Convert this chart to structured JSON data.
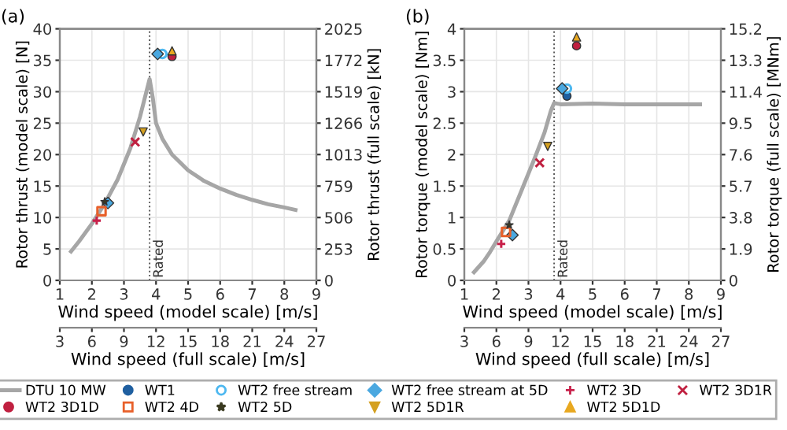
{
  "chart_data": [
    {
      "type": "scatter",
      "title": "(a)",
      "xlabel": "Wind speed (model scale) [m/s]",
      "ylabel": "Rotor thrust (model scale) [N]",
      "y2label": "Rotor thrust (full scale) [kN]",
      "x2label": "Wind speed (full scale) [m/s]",
      "xlim": [
        1,
        9
      ],
      "xticks": [
        1,
        2,
        3,
        4,
        5,
        6,
        7,
        8,
        9
      ],
      "ylim": [
        0,
        40
      ],
      "yticks": [
        0,
        5,
        10,
        15,
        20,
        25,
        30,
        35,
        40
      ],
      "y2lim": [
        0,
        2025
      ],
      "y2ticks": [
        0,
        253,
        506,
        759,
        1013,
        1266,
        1519,
        1772,
        2025
      ],
      "x2lim": [
        3,
        27
      ],
      "x2ticks": [
        3,
        6,
        9,
        12,
        15,
        18,
        21,
        24,
        27
      ],
      "grid": true,
      "legend": "bottom",
      "ref_lines": [
        {
          "axis": "x",
          "value": 3.8,
          "label": "Rated",
          "color": "#555555",
          "line_style": "dotted"
        }
      ],
      "series": [
        {
          "name": "DTU 10 MW",
          "type": "line",
          "color": "#a6a6a6",
          "marker": "none",
          "x": [
            1.35,
            1.6,
            2.0,
            2.4,
            2.8,
            3.2,
            3.5,
            3.7,
            3.8,
            3.9,
            4.0,
            4.2,
            4.5,
            5.0,
            5.5,
            6.0,
            6.5,
            7.0,
            7.5,
            8.0,
            8.35
          ],
          "values": [
            4.6,
            6.2,
            9.0,
            12.2,
            16.0,
            21.0,
            26.0,
            30.0,
            32.0,
            29.0,
            25.0,
            22.5,
            20.0,
            17.5,
            15.8,
            14.6,
            13.6,
            12.8,
            12.1,
            11.6,
            11.2
          ]
        },
        {
          "name": "WT1",
          "color": "#1f5fa0",
          "marker": "circle"
        },
        {
          "name": "WT2 free stream",
          "color": "#4db8f0",
          "marker": "circle_open",
          "x": [
            4.2
          ],
          "values": [
            36.0
          ]
        },
        {
          "name": "WT2 free stream at 5D",
          "color": "#4aa8e0",
          "marker": "diamond",
          "x": [
            2.5,
            4.05
          ],
          "values": [
            12.3,
            36.0
          ]
        },
        {
          "name": "WT2 3D",
          "color": "#c8204a",
          "marker": "plus",
          "x": [
            2.15
          ],
          "values": [
            9.5
          ]
        },
        {
          "name": "WT2 3D1R",
          "color": "#c02040",
          "marker": "cross",
          "x": [
            3.35
          ],
          "values": [
            22.0
          ]
        },
        {
          "name": "WT2 3D1D",
          "color": "#c02040",
          "marker": "circle",
          "x": [
            4.5
          ],
          "values": [
            35.6
          ]
        },
        {
          "name": "WT2 4D",
          "color": "#e8602a",
          "marker": "square_open",
          "x": [
            2.3
          ],
          "values": [
            11.0
          ]
        },
        {
          "name": "WT2 5D",
          "color": "#3a3a20",
          "marker": "star",
          "x": [
            2.4
          ],
          "values": [
            12.5
          ]
        },
        {
          "name": "WT2 5D1R",
          "color": "#d4a020",
          "marker": "triangle_down",
          "x": [
            3.6
          ],
          "values": [
            23.6
          ]
        },
        {
          "name": "WT2 5D1D",
          "color": "#e8a820",
          "marker": "triangle",
          "x": [
            4.5
          ],
          "values": [
            36.5
          ]
        }
      ]
    },
    {
      "type": "scatter",
      "title": "(b)",
      "xlabel": "Wind speed (model scale) [m/s]",
      "ylabel": "Rotor torque (model scale) [Nm]",
      "y2label": "Rotor torque (full scale) [MNm]",
      "x2label": "Wind speed (full scale) [m/s]",
      "xlim": [
        1,
        9
      ],
      "xticks": [
        1,
        2,
        3,
        4,
        5,
        6,
        7,
        8,
        9
      ],
      "ylim": [
        0,
        4
      ],
      "yticks": [
        0,
        0.5,
        1,
        1.5,
        2,
        2.5,
        3,
        3.5,
        4
      ],
      "y2lim": [
        0,
        15.2
      ],
      "y2ticks": [
        0,
        1.9,
        3.8,
        5.7,
        7.6,
        9.5,
        11.4,
        13.3,
        15.2
      ],
      "x2lim": [
        3,
        27
      ],
      "x2ticks": [
        3,
        6,
        9,
        12,
        15,
        18,
        21,
        24,
        27
      ],
      "grid": true,
      "ref_lines": [
        {
          "axis": "x",
          "value": 3.8,
          "label": "Rated",
          "color": "#555555",
          "line_style": "dotted"
        }
      ],
      "series": [
        {
          "type": "line",
          "color": "#a6a6a6",
          "marker": "none",
          "x": [
            1.3,
            1.6,
            1.8,
            2.0,
            2.4,
            2.8,
            3.2,
            3.5,
            3.7,
            3.8,
            3.9,
            4.0,
            5.0,
            6.0,
            8.35
          ],
          "values": [
            0.13,
            0.3,
            0.45,
            0.62,
            0.95,
            1.45,
            1.95,
            2.35,
            2.7,
            2.82,
            2.81,
            2.8,
            2.81,
            2.8,
            2.8
          ]
        },
        {
          "color": "#1f5fa0",
          "marker": "circle",
          "x": [
            4.2
          ],
          "values": [
            2.93
          ]
        },
        {
          "color": "#4db8f0",
          "marker": "circle_open",
          "x": [
            4.2
          ],
          "values": [
            3.05
          ]
        },
        {
          "color": "#4aa8e0",
          "marker": "diamond",
          "x": [
            2.5,
            4.05
          ],
          "values": [
            0.72,
            3.05
          ]
        },
        {
          "color": "#c8204a",
          "marker": "plus",
          "x": [
            2.15
          ],
          "values": [
            0.58
          ]
        },
        {
          "color": "#c02040",
          "marker": "cross",
          "x": [
            3.35
          ],
          "values": [
            1.87
          ]
        },
        {
          "color": "#c02040",
          "marker": "circle",
          "x": [
            4.5
          ],
          "values": [
            3.73
          ]
        },
        {
          "color": "#e8602a",
          "marker": "square_open",
          "x": [
            2.3
          ],
          "values": [
            0.77
          ]
        },
        {
          "color": "#3a3a20",
          "marker": "star",
          "x": [
            2.4
          ],
          "values": [
            0.88
          ]
        },
        {
          "color": "#d4a020",
          "marker": "triangle_down",
          "x": [
            3.6
          ],
          "values": [
            2.13
          ]
        },
        {
          "color": "#e8a820",
          "marker": "triangle",
          "x": [
            4.5
          ],
          "values": [
            3.87
          ]
        }
      ]
    }
  ]
}
